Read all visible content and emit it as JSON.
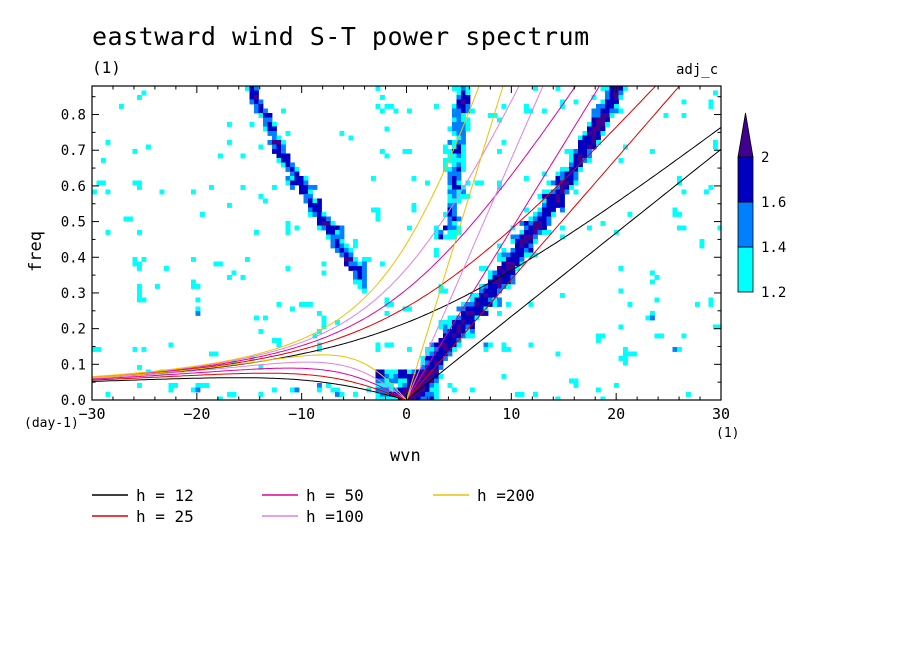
{
  "title": "eastward wind S-T power spectrum",
  "subtitle_left": "(1)",
  "subtitle_right": "adj_c",
  "xlabel": "wvn",
  "ylabel": "freq",
  "x_unit_left": "(day-1)",
  "x_unit_right": "(1)",
  "colors": {
    "level_1_2": "#00ffff",
    "level_1_4": "#0080ff",
    "level_1_6": "#0000c0",
    "level_2": "#400090",
    "h12": "#000000",
    "h25": "#e00000",
    "h50": "#e000a0",
    "h100": "#e080e0",
    "h200": "#f0c000"
  },
  "colorbar": {
    "labels": [
      "1.2",
      "1.4",
      "1.6",
      "2"
    ],
    "levels": [
      1.2,
      1.4,
      1.6,
      2.0
    ]
  },
  "chart_data": {
    "type": "heatmap",
    "title": "eastward wind S-T power spectrum",
    "xlabel": "wvn",
    "ylabel": "freq",
    "xlim": [
      -30,
      30
    ],
    "ylim": [
      0,
      0.88
    ],
    "xticks": [
      -30,
      -20,
      -10,
      0,
      10,
      20,
      30
    ],
    "xtick_labels": [
      "−30",
      "−20",
      "−10",
      "0",
      "10",
      "20",
      "30"
    ],
    "yticks": [
      0,
      0.1,
      0.2,
      0.3,
      0.4,
      0.5,
      0.6,
      0.7,
      0.8
    ],
    "ytick_labels": [
      "0.0",
      "0.1",
      "0.2",
      "0.3",
      "0.4",
      "0.5",
      "0.6",
      "0.7",
      "0.8"
    ],
    "shading_levels": [
      1.2,
      1.4,
      1.6,
      2.0
    ],
    "legend_position": "bottom",
    "dispersion_curves": [
      {
        "name": "h = 12",
        "h": 12
      },
      {
        "name": "h = 25",
        "h": 25
      },
      {
        "name": "h = 50",
        "h": 50
      },
      {
        "name": "h =100",
        "h": 100
      },
      {
        "name": "h =200",
        "h": 200
      }
    ],
    "kelvin_band": {
      "wvn": [
        0,
        5,
        10,
        15,
        20
      ],
      "freq": [
        0.0,
        0.2,
        0.38,
        0.6,
        0.86
      ]
    },
    "westward_band": {
      "wvn": [
        -15,
        -12,
        -9,
        -6
      ],
      "freq": [
        0.88,
        0.7,
        0.55,
        0.42
      ]
    }
  }
}
